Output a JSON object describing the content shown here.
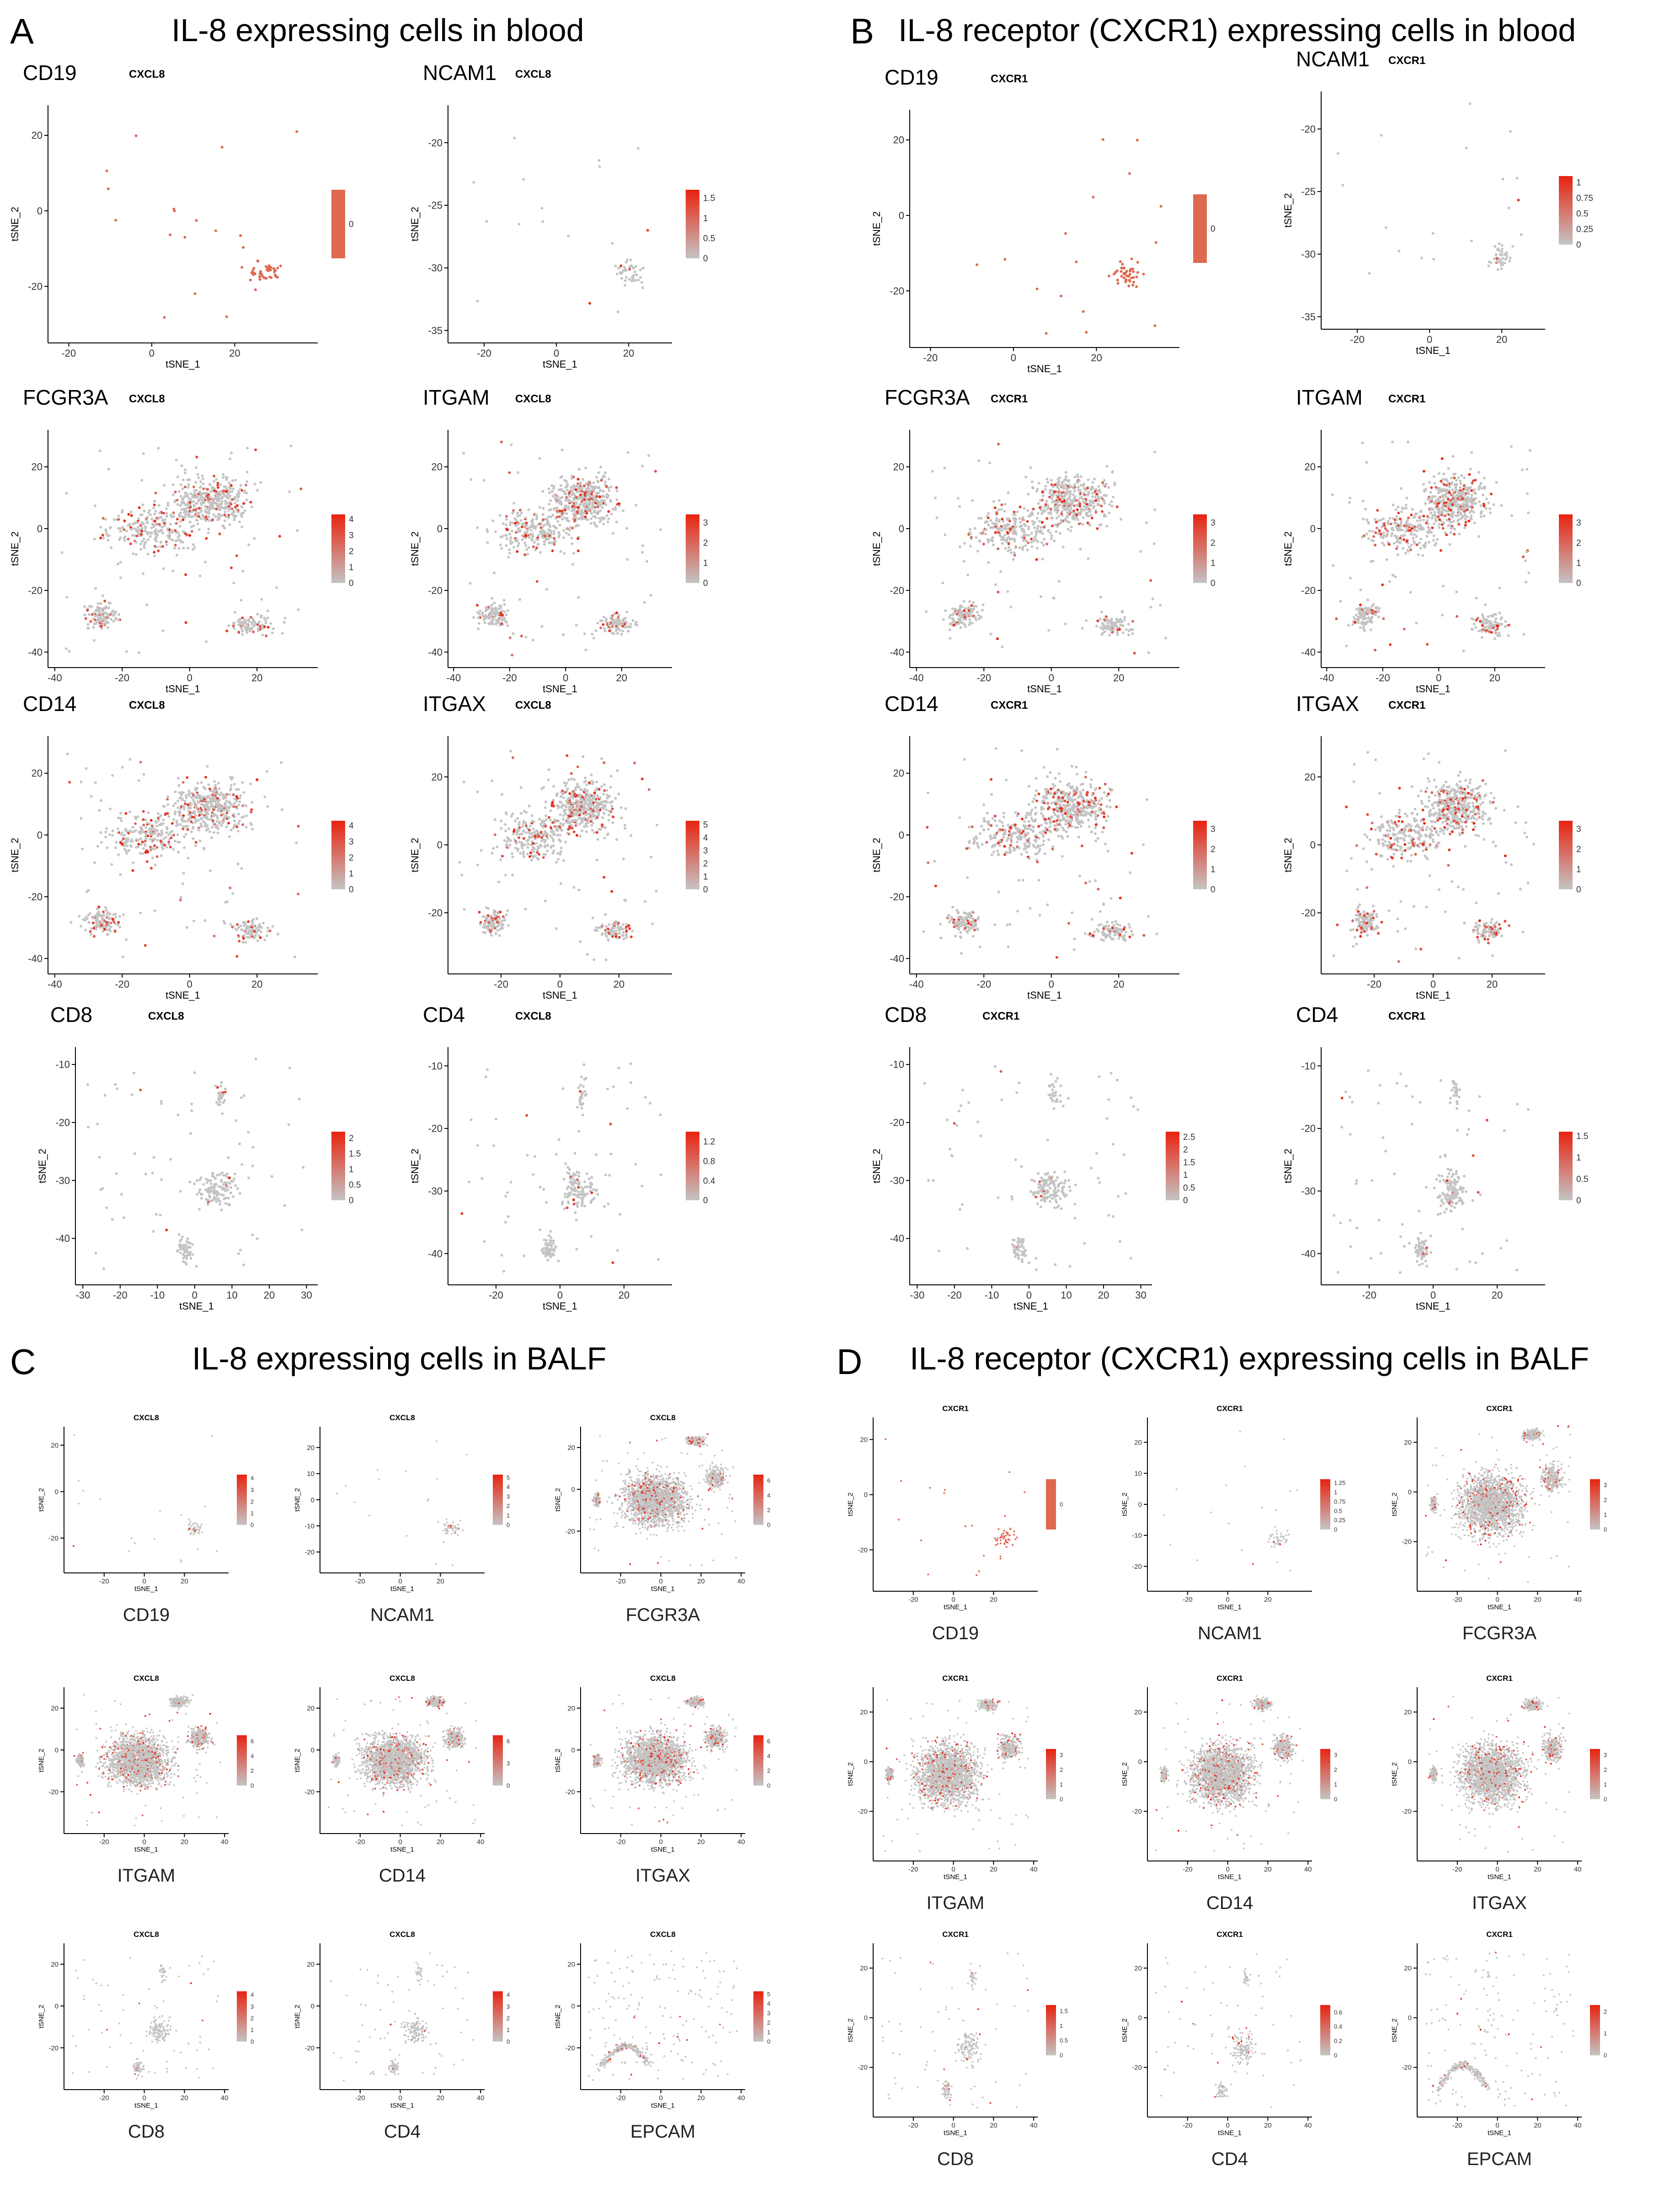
{
  "figure": {
    "panels": [
      {
        "letter": "A",
        "title": "IL-8 expressing cells in blood"
      },
      {
        "letter": "B",
        "title": "IL-8 receptor (CXCR1) expressing cells in blood"
      },
      {
        "letter": "C",
        "title": "IL-8 expressing cells in BALF"
      },
      {
        "letter": "D",
        "title": "IL-8 receptor (CXCR1) expressing cells in BALF"
      }
    ],
    "axis_x_label": "tSNE_1",
    "axis_y_label": "tSNE_2",
    "colors": {
      "low": "#c4c4c4",
      "high": "#e8230f",
      "flat": "#de6951",
      "text": "#000000"
    }
  },
  "chart_data": [
    {
      "id": "A1",
      "panel": "A",
      "type": "scatter",
      "marker": "CD19",
      "gene": "CXCL8",
      "pattern": "sparse",
      "xlim": [
        -25,
        40
      ],
      "ylim": [
        -35,
        28
      ],
      "xticks": [
        -20,
        0,
        20
      ],
      "yticks": [
        -20,
        0,
        20
      ],
      "legend": [
        0
      ],
      "legend_max": 0
    },
    {
      "id": "A2",
      "panel": "A",
      "type": "scatter",
      "marker": "NCAM1",
      "gene": "CXCL8",
      "pattern": "sparse",
      "xlim": [
        -30,
        32
      ],
      "ylim": [
        -36,
        -17
      ],
      "xticks": [
        -20,
        0,
        20
      ],
      "yticks": [
        -35,
        -30,
        -25,
        -20
      ],
      "legend": [
        1.5,
        1.0,
        0.5,
        0.0
      ],
      "legend_max": 1.7
    },
    {
      "id": "A3",
      "panel": "A",
      "type": "scatter",
      "marker": "FCGR3A",
      "gene": "CXCL8",
      "pattern": "big",
      "xlim": [
        -42,
        38
      ],
      "ylim": [
        -45,
        32
      ],
      "xticks": [
        -40,
        -20,
        0,
        20
      ],
      "yticks": [
        -40,
        -20,
        0,
        20
      ],
      "legend": [
        4,
        3,
        2,
        1,
        0
      ],
      "legend_max": 4.3
    },
    {
      "id": "A4",
      "panel": "A",
      "type": "scatter",
      "marker": "ITGAM",
      "gene": "CXCL8",
      "pattern": "big",
      "xlim": [
        -42,
        38
      ],
      "ylim": [
        -45,
        32
      ],
      "xticks": [
        -40,
        -20,
        0,
        20
      ],
      "yticks": [
        -40,
        -20,
        0,
        20
      ],
      "legend": [
        3,
        2,
        1,
        0
      ],
      "legend_max": 3.4
    },
    {
      "id": "A5",
      "panel": "A",
      "type": "scatter",
      "marker": "CD14",
      "gene": "CXCL8",
      "pattern": "big",
      "xlim": [
        -42,
        38
      ],
      "ylim": [
        -45,
        32
      ],
      "xticks": [
        -40,
        -20,
        0,
        20
      ],
      "yticks": [
        -40,
        -20,
        0,
        20
      ],
      "legend": [
        4,
        3,
        2,
        1,
        0
      ],
      "legend_max": 4.3
    },
    {
      "id": "A6",
      "panel": "A",
      "type": "scatter",
      "marker": "ITGAX",
      "gene": "CXCL8",
      "pattern": "big",
      "xlim": [
        -38,
        38
      ],
      "ylim": [
        -38,
        32
      ],
      "xticks": [
        -20,
        0,
        20
      ],
      "yticks": [
        -20,
        0,
        20
      ],
      "legend": [
        5,
        4,
        3,
        2,
        1,
        0
      ],
      "legend_max": 5.3
    },
    {
      "id": "A7",
      "panel": "A",
      "type": "scatter",
      "marker": "CD8",
      "gene": "CXCL8",
      "pattern": "cluster",
      "xlim": [
        -32,
        33
      ],
      "ylim": [
        -48,
        -7
      ],
      "xticks": [
        -30,
        -20,
        -10,
        0,
        10,
        20,
        30
      ],
      "yticks": [
        -40,
        -30,
        -20,
        -10
      ],
      "legend": [
        2.0,
        1.5,
        1.0,
        0.5,
        0.0
      ],
      "legend_max": 2.2
    },
    {
      "id": "A8",
      "panel": "A",
      "type": "scatter",
      "marker": "CD4",
      "gene": "CXCL8",
      "pattern": "cluster",
      "xlim": [
        -35,
        35
      ],
      "ylim": [
        -45,
        -7
      ],
      "xticks": [
        -20,
        0,
        20
      ],
      "yticks": [
        -40,
        -30,
        -20,
        -10
      ],
      "legend": [
        1.2,
        0.8,
        0.4,
        0.0
      ],
      "legend_max": 1.4
    },
    {
      "id": "B1",
      "panel": "B",
      "type": "scatter",
      "marker": "CD19",
      "gene": "CXCR1",
      "pattern": "sparse",
      "xlim": [
        -25,
        40
      ],
      "ylim": [
        -35,
        28
      ],
      "xticks": [
        -20,
        0,
        20
      ],
      "yticks": [
        -20,
        0,
        20
      ],
      "legend": [
        0
      ],
      "legend_max": 0
    },
    {
      "id": "B2",
      "panel": "B",
      "type": "scatter",
      "marker": "NCAM1",
      "gene": "CXCR1",
      "pattern": "sparse",
      "xlim": [
        -30,
        32
      ],
      "ylim": [
        -36,
        -17
      ],
      "xticks": [
        -20,
        0,
        20
      ],
      "yticks": [
        -35,
        -30,
        -25,
        -20
      ],
      "legend": [
        1.0,
        0.75,
        0.5,
        0.25,
        0.0
      ],
      "legend_max": 1.1
    },
    {
      "id": "B3",
      "panel": "B",
      "type": "scatter",
      "marker": "FCGR3A",
      "gene": "CXCR1",
      "pattern": "big",
      "xlim": [
        -42,
        38
      ],
      "ylim": [
        -45,
        32
      ],
      "xticks": [
        -40,
        -20,
        0,
        20
      ],
      "yticks": [
        -40,
        -20,
        0,
        20
      ],
      "legend": [
        3,
        2,
        1,
        0
      ],
      "legend_max": 3.4
    },
    {
      "id": "B4",
      "panel": "B",
      "type": "scatter",
      "marker": "ITGAM",
      "gene": "CXCR1",
      "pattern": "big",
      "xlim": [
        -42,
        38
      ],
      "ylim": [
        -45,
        32
      ],
      "xticks": [
        -40,
        -20,
        0,
        20
      ],
      "yticks": [
        -40,
        -20,
        0,
        20
      ],
      "legend": [
        3,
        2,
        1,
        0
      ],
      "legend_max": 3.4
    },
    {
      "id": "B5",
      "panel": "B",
      "type": "scatter",
      "marker": "CD14",
      "gene": "CXCR1",
      "pattern": "big",
      "xlim": [
        -42,
        38
      ],
      "ylim": [
        -45,
        32
      ],
      "xticks": [
        -40,
        -20,
        0,
        20
      ],
      "yticks": [
        -40,
        -20,
        0,
        20
      ],
      "legend": [
        3,
        2,
        1,
        0
      ],
      "legend_max": 3.4
    },
    {
      "id": "B6",
      "panel": "B",
      "type": "scatter",
      "marker": "ITGAX",
      "gene": "CXCR1",
      "pattern": "big",
      "xlim": [
        -38,
        38
      ],
      "ylim": [
        -38,
        32
      ],
      "xticks": [
        -20,
        0,
        20
      ],
      "yticks": [
        -20,
        0,
        20
      ],
      "legend": [
        3,
        2,
        1,
        0
      ],
      "legend_max": 3.4
    },
    {
      "id": "B7",
      "panel": "B",
      "type": "scatter",
      "marker": "CD8",
      "gene": "CXCR1",
      "pattern": "cluster",
      "xlim": [
        -32,
        33
      ],
      "ylim": [
        -48,
        -7
      ],
      "xticks": [
        -30,
        -20,
        -10,
        0,
        10,
        20,
        30
      ],
      "yticks": [
        -40,
        -30,
        -20,
        -10
      ],
      "legend": [
        2.5,
        2.0,
        1.5,
        1.0,
        0.5,
        0.0
      ],
      "legend_max": 2.7
    },
    {
      "id": "B8",
      "panel": "B",
      "type": "scatter",
      "marker": "CD4",
      "gene": "CXCR1",
      "pattern": "cluster",
      "xlim": [
        -35,
        35
      ],
      "ylim": [
        -45,
        -7
      ],
      "xticks": [
        -20,
        0,
        20
      ],
      "yticks": [
        -40,
        -30,
        -20,
        -10
      ],
      "legend": [
        1.5,
        1.0,
        0.5,
        0.0
      ],
      "legend_max": 1.6
    },
    {
      "id": "C1",
      "panel": "C",
      "type": "scatter",
      "marker": "CD19",
      "gene": "CXCL8",
      "pattern": "sparse",
      "xlim": [
        -40,
        42
      ],
      "ylim": [
        -35,
        28
      ],
      "xticks": [
        -20,
        0,
        20
      ],
      "yticks": [
        -20,
        0,
        20
      ],
      "legend": [
        4,
        3,
        2,
        1,
        0
      ],
      "legend_max": 4.3
    },
    {
      "id": "C2",
      "panel": "C",
      "type": "scatter",
      "marker": "NCAM1",
      "gene": "CXCL8",
      "pattern": "sparse",
      "xlim": [
        -40,
        42
      ],
      "ylim": [
        -28,
        28
      ],
      "xticks": [
        -20,
        0,
        20
      ],
      "yticks": [
        -20,
        -10,
        0,
        10,
        20
      ],
      "legend": [
        5,
        4,
        3,
        2,
        1,
        0
      ],
      "legend_max": 5.3
    },
    {
      "id": "C3",
      "panel": "C",
      "type": "scatter",
      "marker": "FCGR3A",
      "gene": "CXCL8",
      "pattern": "dense",
      "xlim": [
        -40,
        42
      ],
      "ylim": [
        -40,
        30
      ],
      "xticks": [
        -20,
        0,
        20,
        40
      ],
      "yticks": [
        -20,
        0,
        20
      ],
      "legend": [
        6,
        4,
        2,
        0
      ],
      "legend_max": 6.8
    },
    {
      "id": "C4",
      "panel": "C",
      "type": "scatter",
      "marker": "ITGAM",
      "gene": "CXCL8",
      "pattern": "dense",
      "xlim": [
        -40,
        42
      ],
      "ylim": [
        -40,
        30
      ],
      "xticks": [
        -20,
        0,
        20,
        40
      ],
      "yticks": [
        -20,
        0,
        20
      ],
      "legend": [
        6,
        4,
        2,
        0
      ],
      "legend_max": 6.8
    },
    {
      "id": "C5",
      "panel": "C",
      "type": "scatter",
      "marker": "CD14",
      "gene": "CXCL8",
      "pattern": "dense",
      "xlim": [
        -40,
        42
      ],
      "ylim": [
        -40,
        30
      ],
      "xticks": [
        -20,
        0,
        20,
        40
      ],
      "yticks": [
        -20,
        0,
        20
      ],
      "legend": [
        6,
        3,
        0
      ],
      "legend_max": 6.8
    },
    {
      "id": "C6",
      "panel": "C",
      "type": "scatter",
      "marker": "ITGAX",
      "gene": "CXCL8",
      "pattern": "dense",
      "xlim": [
        -40,
        42
      ],
      "ylim": [
        -40,
        30
      ],
      "xticks": [
        -20,
        0,
        20,
        40
      ],
      "yticks": [
        -20,
        0,
        20
      ],
      "legend": [
        6,
        4,
        2,
        0
      ],
      "legend_max": 6.8
    },
    {
      "id": "C7",
      "panel": "C",
      "type": "scatter",
      "marker": "CD8",
      "gene": "CXCL8",
      "pattern": "cluster",
      "xlim": [
        -40,
        42
      ],
      "ylim": [
        -40,
        30
      ],
      "xticks": [
        -20,
        0,
        20,
        40
      ],
      "yticks": [
        -20,
        0,
        20
      ],
      "legend": [
        4,
        3,
        2,
        1,
        0
      ],
      "legend_max": 4.3
    },
    {
      "id": "C8",
      "panel": "C",
      "type": "scatter",
      "marker": "CD4",
      "gene": "CXCL8",
      "pattern": "cluster",
      "xlim": [
        -40,
        42
      ],
      "ylim": [
        -40,
        30
      ],
      "xticks": [
        -20,
        0,
        20,
        40
      ],
      "yticks": [
        -20,
        0,
        20
      ],
      "legend": [
        4,
        3,
        2,
        1,
        0
      ],
      "legend_max": 4.3
    },
    {
      "id": "C9",
      "panel": "C",
      "type": "scatter",
      "marker": "EPCAM",
      "gene": "CXCL8",
      "pattern": "epcam",
      "xlim": [
        -40,
        42
      ],
      "ylim": [
        -40,
        30
      ],
      "xticks": [
        -20,
        0,
        20,
        40
      ],
      "yticks": [
        -20,
        0,
        20
      ],
      "legend": [
        5,
        4,
        3,
        2,
        1,
        0
      ],
      "legend_max": 5.3
    },
    {
      "id": "D1",
      "panel": "D",
      "type": "scatter",
      "marker": "CD19",
      "gene": "CXCR1",
      "pattern": "sparse",
      "xlim": [
        -40,
        42
      ],
      "ylim": [
        -35,
        28
      ],
      "xticks": [
        -20,
        0,
        20
      ],
      "yticks": [
        -20,
        0,
        20
      ],
      "legend": [
        0
      ],
      "legend_max": 0
    },
    {
      "id": "D2",
      "panel": "D",
      "type": "scatter",
      "marker": "NCAM1",
      "gene": "CXCR1",
      "pattern": "sparse",
      "xlim": [
        -40,
        42
      ],
      "ylim": [
        -28,
        28
      ],
      "xticks": [
        -20,
        0,
        20
      ],
      "yticks": [
        -20,
        -10,
        0,
        10,
        20
      ],
      "legend": [
        1.25,
        1.0,
        0.75,
        0.5,
        0.25,
        0.0
      ],
      "legend_max": 1.35
    },
    {
      "id": "D3",
      "panel": "D",
      "type": "scatter",
      "marker": "FCGR3A",
      "gene": "CXCR1",
      "pattern": "dense",
      "xlim": [
        -40,
        42
      ],
      "ylim": [
        -40,
        30
      ],
      "xticks": [
        -20,
        0,
        20,
        40
      ],
      "yticks": [
        -20,
        0,
        20
      ],
      "legend": [
        3,
        2,
        1,
        0
      ],
      "legend_max": 3.4
    },
    {
      "id": "D4",
      "panel": "D",
      "type": "scatter",
      "marker": "ITGAM",
      "gene": "CXCR1",
      "pattern": "dense",
      "xlim": [
        -40,
        42
      ],
      "ylim": [
        -40,
        30
      ],
      "xticks": [
        -20,
        0,
        20,
        40
      ],
      "yticks": [
        -20,
        0,
        20
      ],
      "legend": [
        3,
        2,
        1,
        0
      ],
      "legend_max": 3.4
    },
    {
      "id": "D5",
      "panel": "D",
      "type": "scatter",
      "marker": "CD14",
      "gene": "CXCR1",
      "pattern": "dense",
      "xlim": [
        -40,
        42
      ],
      "ylim": [
        -40,
        30
      ],
      "xticks": [
        -20,
        0,
        20,
        40
      ],
      "yticks": [
        -20,
        0,
        20
      ],
      "legend": [
        3,
        2,
        1,
        0
      ],
      "legend_max": 3.4
    },
    {
      "id": "D6",
      "panel": "D",
      "type": "scatter",
      "marker": "ITGAX",
      "gene": "CXCR1",
      "pattern": "dense",
      "xlim": [
        -40,
        42
      ],
      "ylim": [
        -40,
        30
      ],
      "xticks": [
        -20,
        0,
        20,
        40
      ],
      "yticks": [
        -20,
        0,
        20
      ],
      "legend": [
        3,
        2,
        1,
        0
      ],
      "legend_max": 3.4
    },
    {
      "id": "D7",
      "panel": "D",
      "type": "scatter",
      "marker": "CD8",
      "gene": "CXCR1",
      "pattern": "cluster",
      "xlim": [
        -40,
        42
      ],
      "ylim": [
        -40,
        30
      ],
      "xticks": [
        -20,
        0,
        20,
        40
      ],
      "yticks": [
        -20,
        0,
        20
      ],
      "legend": [
        1.5,
        1.0,
        0.5,
        0.0
      ],
      "legend_max": 1.7
    },
    {
      "id": "D8",
      "panel": "D",
      "type": "scatter",
      "marker": "CD4",
      "gene": "CXCR1",
      "pattern": "cluster",
      "xlim": [
        -40,
        42
      ],
      "ylim": [
        -40,
        30
      ],
      "xticks": [
        -20,
        0,
        20,
        40
      ],
      "yticks": [
        -20,
        0,
        20
      ],
      "legend": [
        0.6,
        0.4,
        0.2,
        0.0
      ],
      "legend_max": 0.7
    },
    {
      "id": "D9",
      "panel": "D",
      "type": "scatter",
      "marker": "EPCAM",
      "gene": "CXCR1",
      "pattern": "epcam",
      "xlim": [
        -40,
        42
      ],
      "ylim": [
        -40,
        30
      ],
      "xticks": [
        -20,
        0,
        20,
        40
      ],
      "yticks": [
        -20,
        0,
        20
      ],
      "legend": [
        2,
        1,
        0
      ],
      "legend_max": 2.3
    }
  ]
}
